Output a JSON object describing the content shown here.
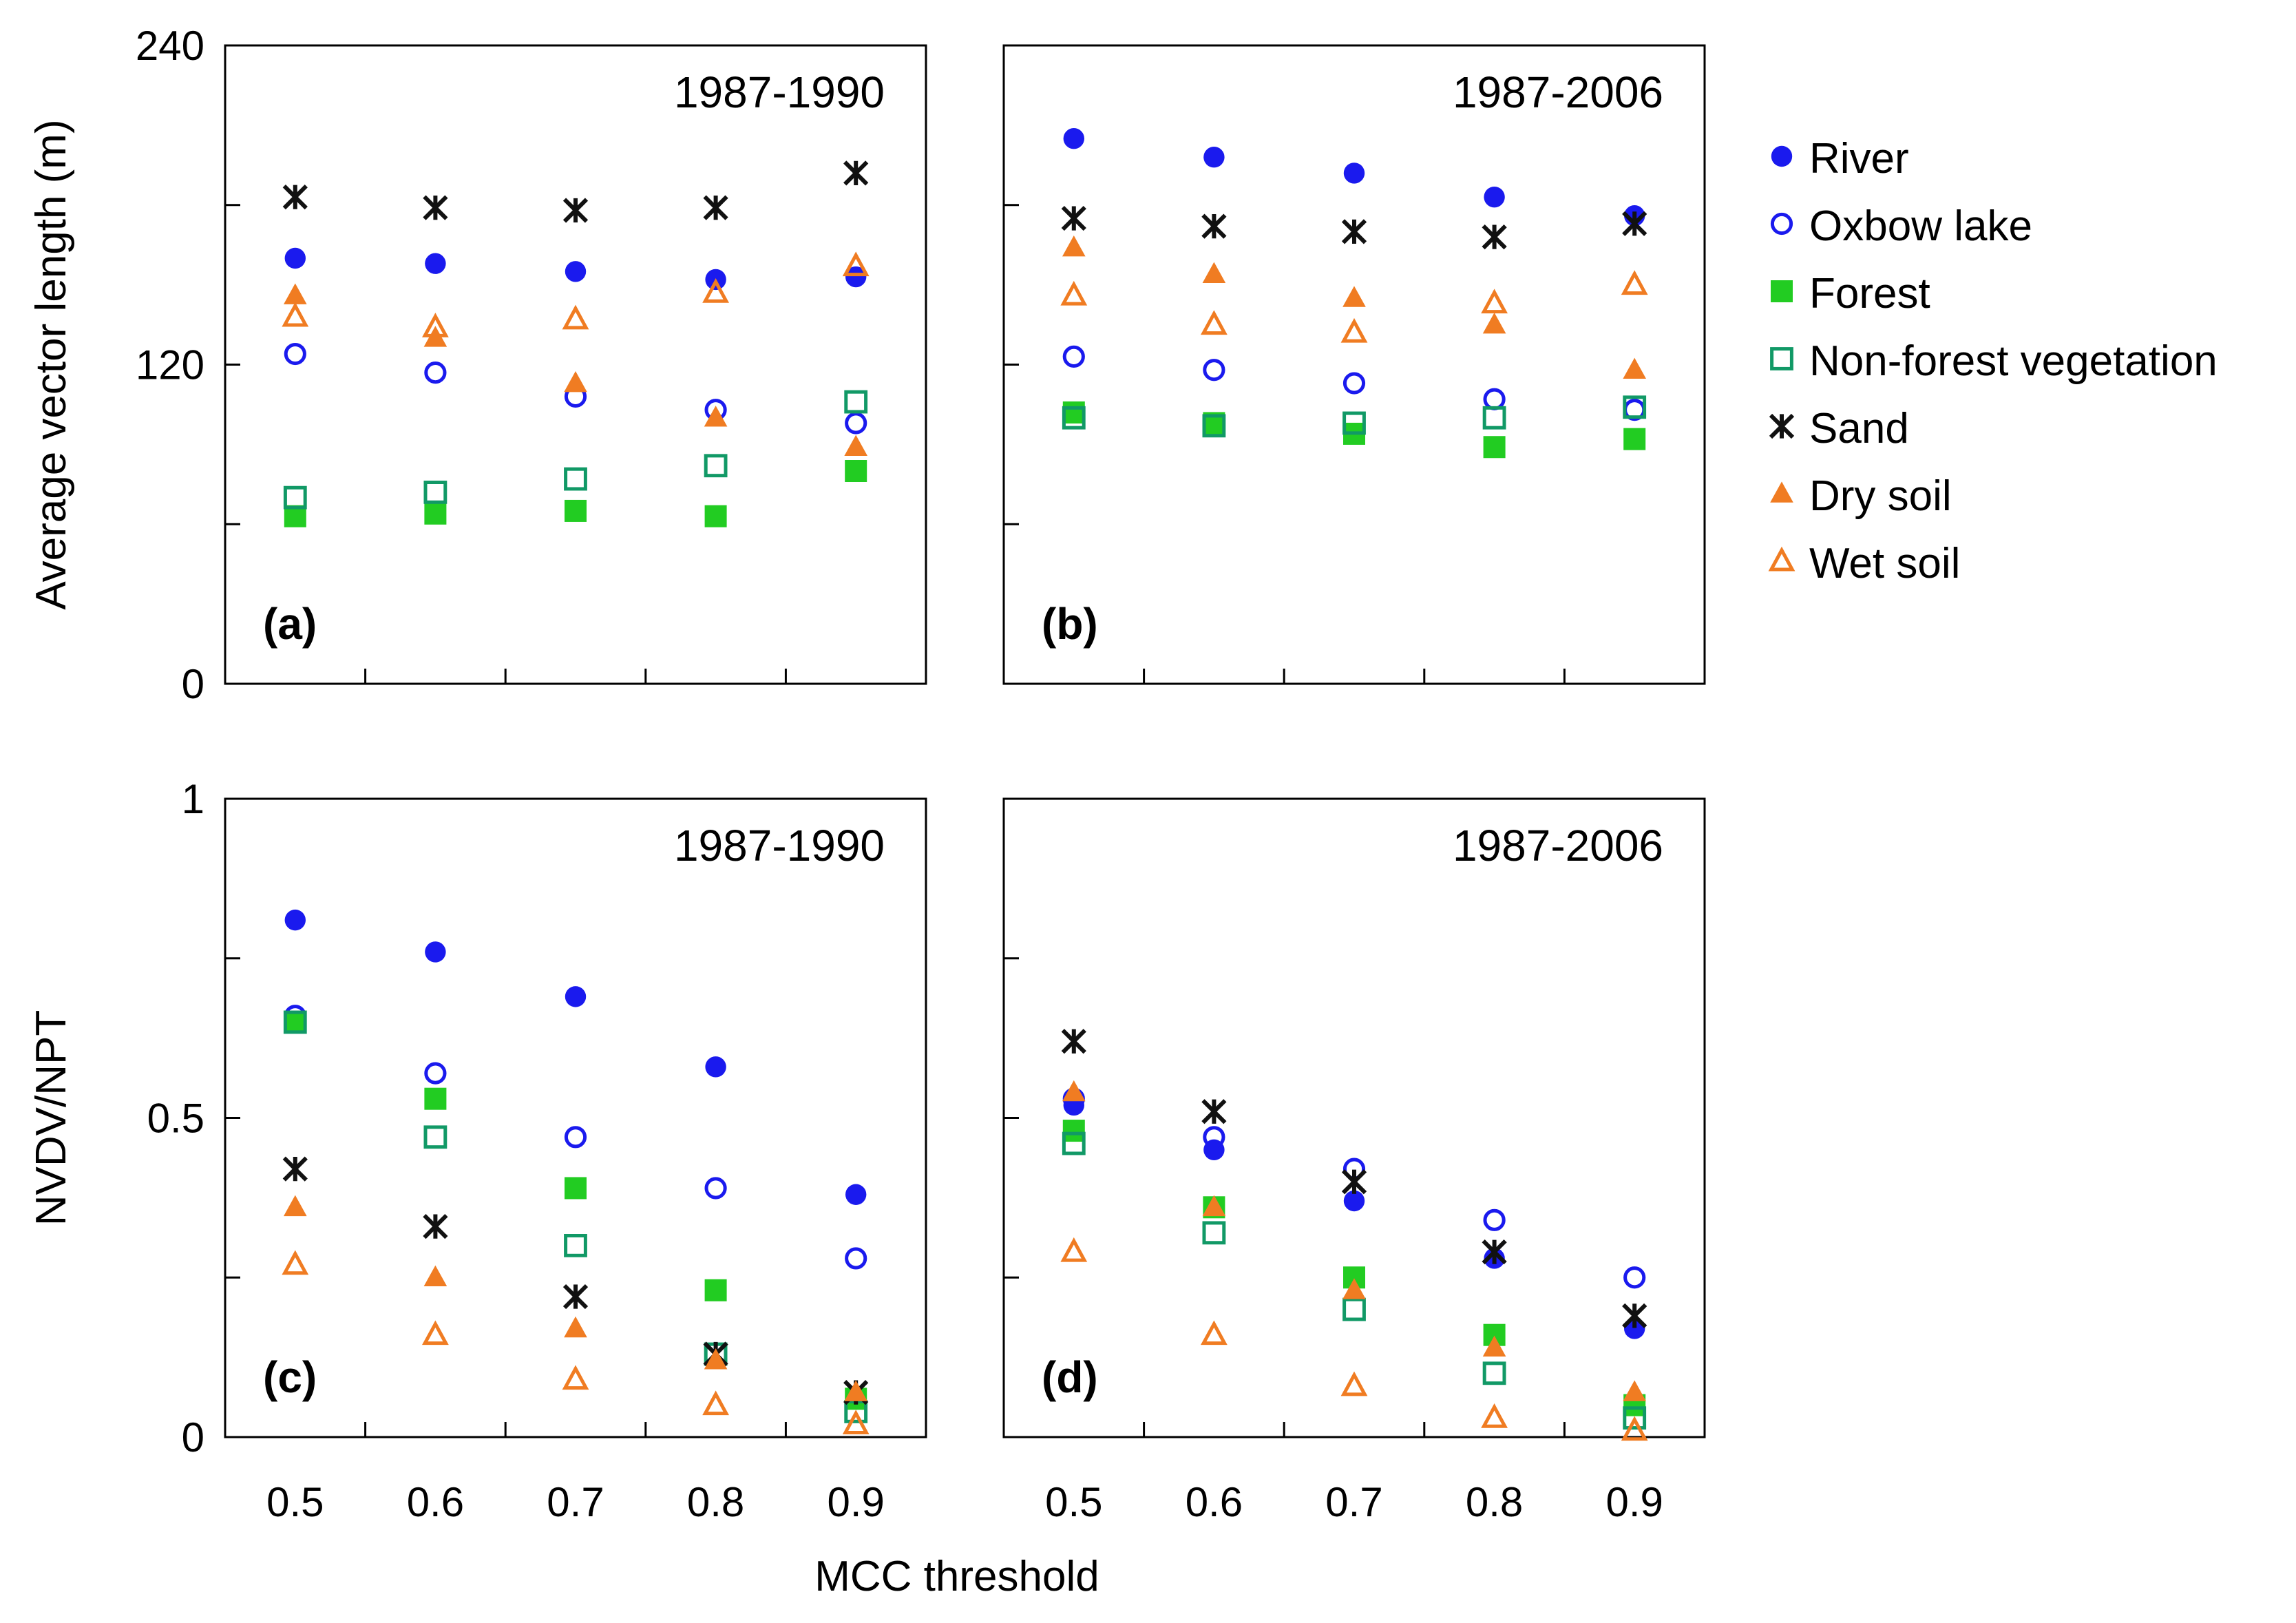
{
  "chart_data": {
    "type": "scatter",
    "xlabel": "MCC threshold",
    "x": [
      0.5,
      0.6,
      0.7,
      0.8,
      0.9
    ],
    "x_tick_labels": [
      "0.5",
      "0.6",
      "0.7",
      "0.8",
      "0.9"
    ],
    "legend_position": "right",
    "legend": [
      {
        "key": "river",
        "label": "River",
        "marker": "filled-circle",
        "color": "#1a1aee"
      },
      {
        "key": "oxbow",
        "label": "Oxbow lake",
        "marker": "open-circle",
        "color": "#1a1aee"
      },
      {
        "key": "forest",
        "label": "Forest",
        "marker": "filled-square",
        "color": "#22cc22"
      },
      {
        "key": "nonforest",
        "label": "Non-forest vegetation",
        "marker": "open-square",
        "color": "#119966"
      },
      {
        "key": "sand",
        "label": "Sand",
        "marker": "asterisk",
        "color": "#111111"
      },
      {
        "key": "dry",
        "label": "Dry soil",
        "marker": "filled-triangle",
        "color": "#f07c22"
      },
      {
        "key": "wet",
        "label": "Wet soil",
        "marker": "open-triangle",
        "color": "#f07c22"
      }
    ],
    "rows": [
      {
        "ylabel": "Average vector length (m)",
        "ylim": [
          0,
          240
        ],
        "y_ticks": [
          0,
          60,
          120,
          180,
          240
        ],
        "y_tick_labels": [
          "0",
          "",
          "120",
          "",
          "240"
        ],
        "panels": [
          {
            "title": "1987-1990",
            "letter": "(a)",
            "show_y_tick_labels": true,
            "series": {
              "river": [
                160,
                158,
                155,
                152,
                153
              ],
              "oxbow": [
                124,
                117,
                108,
                103,
                98
              ],
              "forest": [
                63,
                64,
                65,
                63,
                80
              ],
              "nonforest": [
                70,
                72,
                77,
                82,
                106
              ],
              "sand": [
                183,
                179,
                178,
                179,
                192
              ],
              "dry": [
                146,
                130,
                113,
                100,
                89
              ],
              "wet": [
                138,
                134,
                137,
                147,
                157
              ]
            }
          },
          {
            "title": "1987-2006",
            "letter": "(b)",
            "show_y_tick_labels": false,
            "series": {
              "river": [
                205,
                198,
                192,
                183,
                176
              ],
              "oxbow": [
                123,
                118,
                113,
                107,
                103
              ],
              "forest": [
                102,
                98,
                94,
                89,
                92
              ],
              "nonforest": [
                100,
                97,
                98,
                100,
                104
              ],
              "sand": [
                175,
                172,
                170,
                168,
                173
              ],
              "dry": [
                164,
                154,
                145,
                135,
                118
              ],
              "wet": [
                146,
                135,
                132,
                143,
                150
              ]
            }
          }
        ]
      },
      {
        "ylabel": "NVDV/NPT",
        "ylim": [
          0,
          1
        ],
        "y_ticks": [
          0,
          0.25,
          0.5,
          0.75,
          1
        ],
        "y_tick_labels": [
          "0",
          "",
          "0.5",
          "",
          "1"
        ],
        "panels": [
          {
            "title": "1987-1990",
            "letter": "(c)",
            "show_y_tick_labels": true,
            "series": {
              "river": [
                0.81,
                0.76,
                0.69,
                0.58,
                0.38
              ],
              "oxbow": [
                0.66,
                0.57,
                0.47,
                0.39,
                0.28
              ],
              "forest": [
                0.65,
                0.53,
                0.39,
                0.23,
                0.06
              ],
              "nonforest": [
                0.65,
                0.47,
                0.3,
                0.13,
                0.04
              ],
              "sand": [
                0.42,
                0.33,
                0.22,
                0.13,
                0.07
              ],
              "dry": [
                0.36,
                0.25,
                0.17,
                0.12,
                0.07
              ],
              "wet": [
                0.27,
                0.16,
                0.09,
                0.05,
                0.02
              ]
            }
          },
          {
            "title": "1987-2006",
            "letter": "(d)",
            "show_y_tick_labels": false,
            "series": {
              "river": [
                0.52,
                0.45,
                0.37,
                0.28,
                0.17
              ],
              "oxbow": [
                0.53,
                0.47,
                0.42,
                0.34,
                0.25
              ],
              "forest": [
                0.48,
                0.36,
                0.25,
                0.16,
                0.05
              ],
              "nonforest": [
                0.46,
                0.32,
                0.2,
                0.1,
                0.03
              ],
              "sand": [
                0.62,
                0.51,
                0.4,
                0.29,
                0.19
              ],
              "dry": [
                0.54,
                0.36,
                0.23,
                0.14,
                0.07
              ],
              "wet": [
                0.29,
                0.16,
                0.08,
                0.03,
                0.01
              ]
            }
          }
        ]
      }
    ]
  }
}
